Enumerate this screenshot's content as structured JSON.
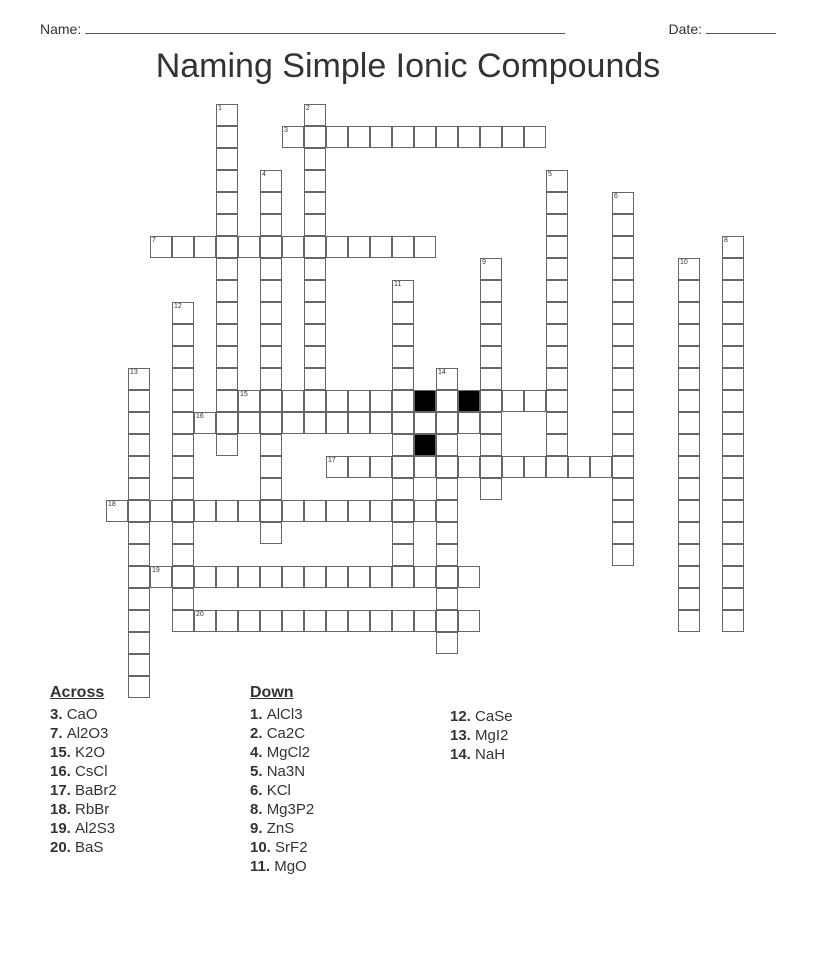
{
  "header": {
    "name_label": "Name:",
    "date_label": "Date:"
  },
  "title": "Naming Simple Ionic Compounds",
  "grid": {
    "cell_size": 22,
    "cols": 34,
    "rows": 26,
    "origin_x": 0,
    "origin_y": 0
  },
  "words": [
    {
      "num": 1,
      "dir": "D",
      "row": 0,
      "col": 8,
      "len": 16
    },
    {
      "num": 2,
      "dir": "D",
      "row": 0,
      "col": 12,
      "len": 14
    },
    {
      "num": 3,
      "dir": "A",
      "row": 1,
      "col": 11,
      "len": 12
    },
    {
      "num": 4,
      "dir": "D",
      "row": 3,
      "col": 10,
      "len": 17
    },
    {
      "num": 5,
      "dir": "D",
      "row": 3,
      "col": 23,
      "len": 13
    },
    {
      "num": 6,
      "dir": "D",
      "row": 4,
      "col": 26,
      "len": 17
    },
    {
      "num": 7,
      "dir": "A",
      "row": 6,
      "col": 5,
      "len": 13
    },
    {
      "num": 8,
      "dir": "D",
      "row": 6,
      "col": 31,
      "len": 18
    },
    {
      "num": 9,
      "dir": "D",
      "row": 7,
      "col": 20,
      "len": 11
    },
    {
      "num": 10,
      "dir": "D",
      "row": 7,
      "col": 29,
      "len": 17
    },
    {
      "num": 11,
      "dir": "D",
      "row": 8,
      "col": 16,
      "len": 14
    },
    {
      "num": 12,
      "dir": "D",
      "row": 9,
      "col": 6,
      "len": 15
    },
    {
      "num": 13,
      "dir": "D",
      "row": 12,
      "col": 4,
      "len": 15
    },
    {
      "num": 14,
      "dir": "D",
      "row": 12,
      "col": 18,
      "len": 13
    },
    {
      "num": 15,
      "dir": "A",
      "row": 13,
      "col": 9,
      "len": 14
    },
    {
      "num": 16,
      "dir": "A",
      "row": 14,
      "col": 7,
      "len": 14
    },
    {
      "num": 17,
      "dir": "A",
      "row": 16,
      "col": 13,
      "len": 13
    },
    {
      "num": 18,
      "dir": "A",
      "row": 18,
      "col": 3,
      "len": 15
    },
    {
      "num": 19,
      "dir": "A",
      "row": 21,
      "col": 5,
      "len": 15
    },
    {
      "num": 20,
      "dir": "A",
      "row": 23,
      "col": 7,
      "len": 13
    }
  ],
  "blacks": [
    {
      "row": 13,
      "col": 17
    },
    {
      "row": 13,
      "col": 19
    },
    {
      "row": 15,
      "col": 17
    }
  ],
  "clues": {
    "across_heading": "Across",
    "down_heading": "Down",
    "across": [
      {
        "num": "3.",
        "text": "CaO"
      },
      {
        "num": "7.",
        "text": "Al2O3"
      },
      {
        "num": "15.",
        "text": "K2O"
      },
      {
        "num": "16.",
        "text": "CsCl"
      },
      {
        "num": "17.",
        "text": "BaBr2"
      },
      {
        "num": "18.",
        "text": "RbBr"
      },
      {
        "num": "19.",
        "text": "Al2S3"
      },
      {
        "num": "20.",
        "text": "BaS"
      }
    ],
    "down": [
      {
        "num": "1.",
        "text": "AlCl3"
      },
      {
        "num": "2.",
        "text": "Ca2C"
      },
      {
        "num": "4.",
        "text": "MgCl2"
      },
      {
        "num": "5.",
        "text": "Na3N"
      },
      {
        "num": "6.",
        "text": "KCl"
      },
      {
        "num": "8.",
        "text": "Mg3P2"
      },
      {
        "num": "9.",
        "text": "ZnS"
      },
      {
        "num": "10.",
        "text": "SrF2"
      },
      {
        "num": "11.",
        "text": "MgO"
      }
    ],
    "extra": [
      {
        "num": "12.",
        "text": "CaSe"
      },
      {
        "num": "13.",
        "text": "MgI2"
      },
      {
        "num": "14.",
        "text": "NaH"
      }
    ]
  }
}
